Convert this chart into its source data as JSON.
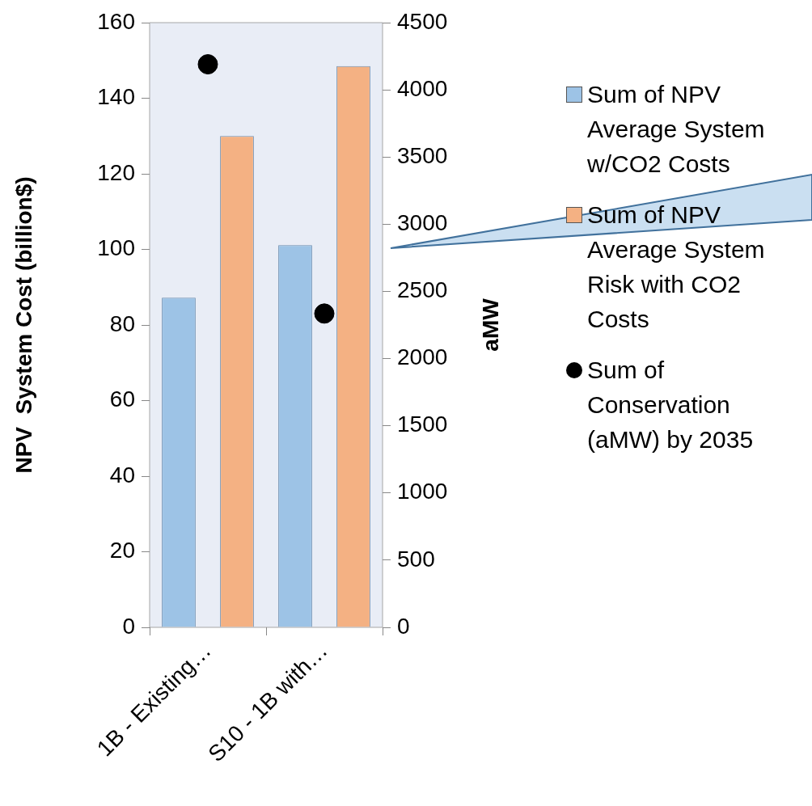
{
  "chart_data": {
    "type": "bar",
    "categories": [
      "1B - Existing…",
      "S10 - 1B with…"
    ],
    "ylabel": "NPV  System Cost (billion$)",
    "y2label": "aMW",
    "ylim": [
      0,
      160
    ],
    "yticks": [
      0,
      20,
      40,
      60,
      80,
      100,
      120,
      140,
      160
    ],
    "y2lim": [
      0,
      4500
    ],
    "y2ticks": [
      0,
      500,
      1000,
      1500,
      2000,
      2500,
      3000,
      3500,
      4000,
      4500
    ],
    "legend": "right",
    "series": [
      {
        "name": "Sum of NPV Average System w/CO2 Costs",
        "color": "#9dc3e6",
        "values": [
          87.2,
          101.1
        ]
      },
      {
        "name": "Sum of NPV Average System Risk with CO2 Costs",
        "color": "#f4b183",
        "values": [
          130,
          148.5
        ]
      },
      {
        "name": "Sum of Conservation (aMW) by 2035",
        "color": "#000000",
        "type": "scatter",
        "axis": "y2",
        "marker": "circle",
        "values": [
          4190,
          2335
        ]
      }
    ]
  }
}
